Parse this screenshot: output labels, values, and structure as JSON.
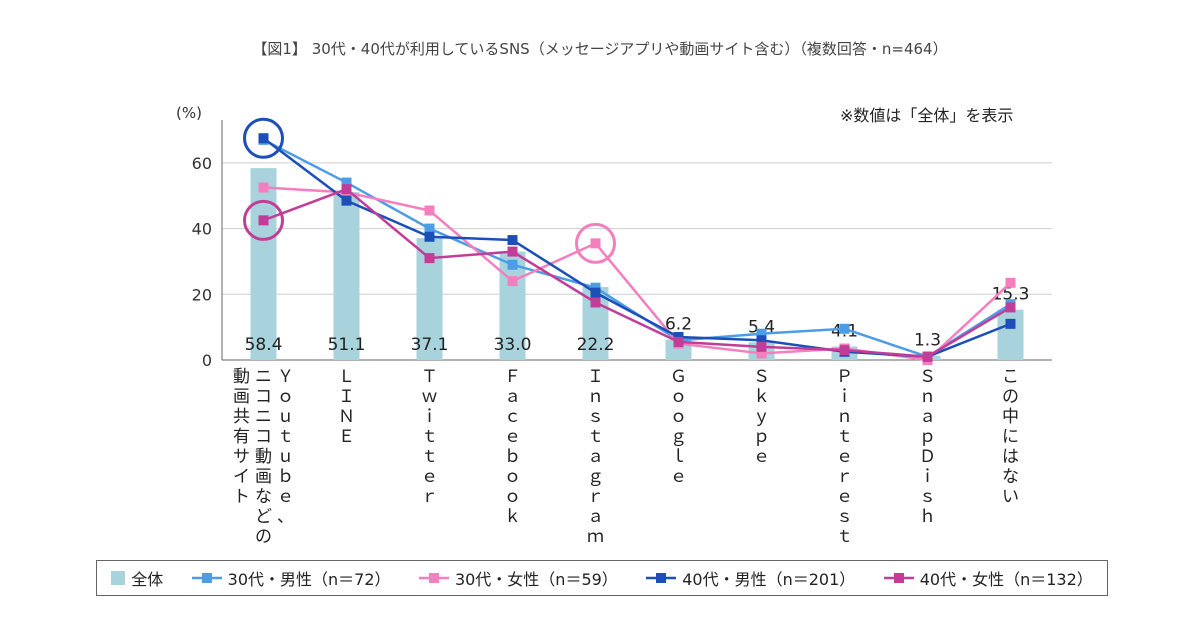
{
  "title": "【図1】 30代・40代が利用しているSNS（メッセージアプリや動画サイト含む）（複数回答・n=464）",
  "note": "※数値は「全体」を表示",
  "chart_data": {
    "type": "bar+line",
    "ylabel": "(%)",
    "ylim": [
      0,
      70
    ],
    "yticks": [
      0,
      20,
      40,
      60
    ],
    "grid": true,
    "legend_position": "bottom",
    "categories": [
      "YouTube、ニコニコ動画などの動画共有サイト",
      "LINE",
      "Twitter",
      "Facebook",
      "Instagram",
      "Google",
      "Skype",
      "Pinterest",
      "SnapDish",
      "この中にはない"
    ],
    "category_labels": [
      [
        "Ｙｏｕｔｕｂｅ、",
        "ニコニコ動画などの",
        "動画共有サイト"
      ],
      [
        "ＬＩＮＥ"
      ],
      [
        "Ｔｗｉｔｔｅｒ"
      ],
      [
        "Ｆａｃｅｂｏｏｋ"
      ],
      [
        "Ｉｎｓｔａｇｒａｍ"
      ],
      [
        "Ｇｏｏｇｌｅ"
      ],
      [
        "Ｓｋｙｐｅ"
      ],
      [
        "Ｐｉｎｔｅｒｅｓｔ"
      ],
      [
        "ＳｎａｐＤｉｓｈ"
      ],
      [
        "この中にはない"
      ]
    ],
    "value_labels": [
      "58.4",
      "51.1",
      "37.1",
      "33.0",
      "22.2",
      "6.2",
      "5.4",
      "4.1",
      "1.3",
      "15.3"
    ],
    "series": [
      {
        "name": "全体",
        "kind": "bar",
        "color": "#a9d3dc",
        "values": [
          58.4,
          51.1,
          37.1,
          33.0,
          22.2,
          6.2,
          5.4,
          4.1,
          1.3,
          15.3
        ]
      },
      {
        "name": "30代・男性（n＝72）",
        "kind": "line",
        "color": "#4d9de6",
        "values": [
          67.0,
          54.0,
          40.0,
          29.0,
          22.0,
          6.0,
          8.0,
          9.5,
          1.0,
          17.0
        ]
      },
      {
        "name": "30代・女性（n＝59）",
        "kind": "line",
        "color": "#f47fbe",
        "values": [
          52.5,
          51.0,
          45.5,
          24.0,
          35.5,
          5.0,
          2.0,
          3.5,
          0.0,
          23.5
        ]
      },
      {
        "name": "40代・男性（n＝201）",
        "kind": "line",
        "color": "#1c4fb8",
        "values": [
          67.5,
          48.5,
          37.5,
          36.5,
          20.5,
          7.0,
          6.0,
          2.5,
          1.0,
          11.0
        ]
      },
      {
        "name": "40代・女性（n＝132）",
        "kind": "line",
        "color": "#c23d97",
        "values": [
          42.5,
          52.0,
          31.0,
          33.0,
          17.5,
          5.5,
          4.0,
          3.0,
          1.0,
          16.0
        ]
      }
    ],
    "highlights": [
      {
        "series": 3,
        "index": 0,
        "color": "#1c4fb8"
      },
      {
        "series": 4,
        "index": 0,
        "color": "#c23d97"
      },
      {
        "series": 2,
        "index": 4,
        "color": "#f47fbe"
      }
    ]
  }
}
